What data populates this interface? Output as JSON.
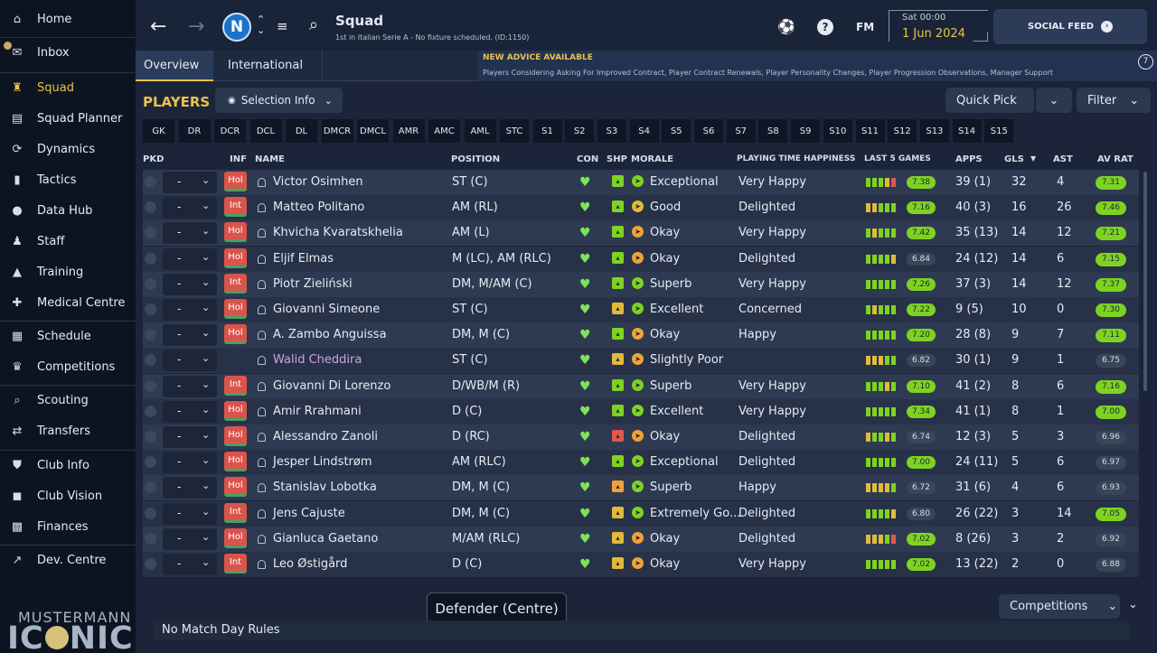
{
  "sidebar": {
    "items": [
      {
        "label": "Home",
        "icon": "home-icon",
        "glyph": "⌂",
        "sep": false,
        "active": false,
        "dot": false
      },
      {
        "label": "Inbox",
        "icon": "inbox-icon",
        "glyph": "✉",
        "sep": true,
        "active": false,
        "dot": true
      },
      {
        "label": "Squad",
        "icon": "squad-icon",
        "glyph": "♜",
        "sep": true,
        "active": true,
        "dot": false
      },
      {
        "label": "Squad Planner",
        "icon": "squad-planner-icon",
        "glyph": "▤",
        "sep": false,
        "active": false,
        "dot": false
      },
      {
        "label": "Dynamics",
        "icon": "dynamics-icon",
        "glyph": "⟳",
        "sep": false,
        "active": false,
        "dot": false
      },
      {
        "label": "Tactics",
        "icon": "tactics-icon",
        "glyph": "▮",
        "sep": false,
        "active": false,
        "dot": false
      },
      {
        "label": "Data Hub",
        "icon": "data-hub-icon",
        "glyph": "●",
        "sep": false,
        "active": false,
        "dot": false
      },
      {
        "label": "Staff",
        "icon": "staff-icon",
        "glyph": "♟",
        "sep": false,
        "active": false,
        "dot": false
      },
      {
        "label": "Training",
        "icon": "training-icon",
        "glyph": "▲",
        "sep": false,
        "active": false,
        "dot": false
      },
      {
        "label": "Medical Centre",
        "icon": "medical-centre-icon",
        "glyph": "✚",
        "sep": false,
        "active": false,
        "dot": false
      },
      {
        "label": "Schedule",
        "icon": "schedule-icon",
        "glyph": "▦",
        "sep": true,
        "active": false,
        "dot": false
      },
      {
        "label": "Competitions",
        "icon": "competitions-icon",
        "glyph": "♛",
        "sep": false,
        "active": false,
        "dot": false
      },
      {
        "label": "Scouting",
        "icon": "scouting-icon",
        "glyph": "⌕",
        "sep": true,
        "active": false,
        "dot": false
      },
      {
        "label": "Transfers",
        "icon": "transfers-icon",
        "glyph": "⇄",
        "sep": false,
        "active": false,
        "dot": false
      },
      {
        "label": "Club Info",
        "icon": "club-info-icon",
        "glyph": "⛊",
        "sep": true,
        "active": false,
        "dot": false
      },
      {
        "label": "Club Vision",
        "icon": "club-vision-icon",
        "glyph": "◼",
        "sep": false,
        "active": false,
        "dot": false
      },
      {
        "label": "Finances",
        "icon": "finances-icon",
        "glyph": "▩",
        "sep": false,
        "active": false,
        "dot": false
      },
      {
        "label": "Dev. Centre",
        "icon": "dev-centre-icon",
        "glyph": "↗",
        "sep": true,
        "active": false,
        "dot": false
      }
    ]
  },
  "brand": {
    "line1": "MUSTERMANN",
    "line2a": "IC",
    "line2b": "NIC"
  },
  "topbar": {
    "title": "Squad",
    "subtitle": "1st in Italian Serie A - No fixture scheduled. (ID:1150)",
    "club_badge": "N",
    "date_day": "Sat 00:00",
    "date_full": "1 Jun 2024",
    "social_label": "SOCIAL FEED",
    "fm_label": "FM"
  },
  "subtabs": [
    {
      "label": "Overview ⌄"
    },
    {
      "label": "International ⌄"
    }
  ],
  "advice": {
    "title": "NEW ADVICE AVAILABLE",
    "text": "Players Considering Asking For Improved Contract, Player Contract Renewals, Player Personality Changes, Player Progression Observations, Manager Support",
    "count": "7"
  },
  "players_title": "PLAYERS",
  "selection_info": "Selection Info",
  "quick_pick": "Quick Pick",
  "filter": "Filter",
  "positions": [
    "GK",
    "DR",
    "DCR",
    "DCL",
    "DL",
    "DMCR",
    "DMCL",
    "AMR",
    "AMC",
    "AML",
    "STC",
    "S1",
    "S2",
    "S3",
    "S4",
    "S5",
    "S6",
    "S7",
    "S8",
    "S9",
    "S10",
    "S11",
    "S12",
    "S13",
    "S14",
    "S15"
  ],
  "columns": {
    "pkd": "PKD",
    "inf": "INF",
    "name": "NAME",
    "position": "POSITION",
    "con": "CON",
    "shp": "SHP",
    "morale": "MORALE",
    "pt": "PLAYING TIME HAPPINESS",
    "last5": "LAST 5 GAMES",
    "apps": "APPS",
    "gls": "GLS",
    "ast": "AST",
    "avrat": "AV RAT"
  },
  "players": [
    {
      "pkd": "-",
      "inf": "Hol",
      "name": "Victor Osimhen",
      "pos": "ST (C)",
      "shp": "g",
      "morale": "Exceptional",
      "mc": "g",
      "happy": "Very Happy",
      "form": [
        "g",
        "g",
        "g",
        "y",
        "r"
      ],
      "fr": "7.38",
      "frc": "g",
      "apps": "39 (1)",
      "gls": "32",
      "ast": "4",
      "av": "7.31",
      "avc": "g"
    },
    {
      "pkd": "-",
      "inf": "Int",
      "name": "Matteo Politano",
      "pos": "AM (RL)",
      "shp": "g",
      "morale": "Good",
      "mc": "y",
      "happy": "Delighted",
      "form": [
        "y",
        "y",
        "g",
        "g",
        "g"
      ],
      "fr": "7.16",
      "frc": "g",
      "apps": "40 (3)",
      "gls": "16",
      "ast": "26",
      "av": "7.46",
      "avc": "g"
    },
    {
      "pkd": "-",
      "inf": "Hol",
      "name": "Khvicha Kvaratskhelia",
      "pos": "AM (L)",
      "shp": "g",
      "morale": "Okay",
      "mc": "o",
      "happy": "Very Happy",
      "form": [
        "g",
        "y",
        "g",
        "g",
        "g"
      ],
      "fr": "7.42",
      "frc": "g",
      "apps": "35 (13)",
      "gls": "14",
      "ast": "12",
      "av": "7.21",
      "avc": "g"
    },
    {
      "pkd": "-",
      "inf": "Hol",
      "name": "Eljif Elmas",
      "pos": "M (LC), AM (RLC)",
      "shp": "g",
      "morale": "Okay",
      "mc": "o",
      "happy": "Delighted",
      "form": [
        "g",
        "g",
        "g",
        "g",
        "y"
      ],
      "fr": "6.84",
      "frc": "gy",
      "apps": "24 (12)",
      "gls": "14",
      "ast": "6",
      "av": "7.15",
      "avc": "g"
    },
    {
      "pkd": "-",
      "inf": "Int",
      "name": "Piotr Zieliński",
      "pos": "DM, M/AM (C)",
      "shp": "g",
      "morale": "Superb",
      "mc": "g",
      "happy": "Very Happy",
      "form": [
        "g",
        "g",
        "g",
        "g",
        "g"
      ],
      "fr": "7.26",
      "frc": "g",
      "apps": "37 (3)",
      "gls": "14",
      "ast": "12",
      "av": "7.37",
      "avc": "g"
    },
    {
      "pkd": "-",
      "inf": "Hol",
      "name": "Giovanni Simeone",
      "pos": "ST (C)",
      "shp": "y",
      "morale": "Excellent",
      "mc": "g",
      "happy": "Concerned",
      "form": [
        "g",
        "y",
        "g",
        "g",
        "g"
      ],
      "fr": "7.22",
      "frc": "g",
      "apps": "9 (5)",
      "gls": "10",
      "ast": "0",
      "av": "7.30",
      "avc": "g"
    },
    {
      "pkd": "-",
      "inf": "Hol",
      "name": "A. Zambo Anguissa",
      "pos": "DM, M (C)",
      "shp": "g",
      "morale": "Okay",
      "mc": "o",
      "happy": "Happy",
      "form": [
        "g",
        "g",
        "g",
        "g",
        "g"
      ],
      "fr": "7.20",
      "frc": "g",
      "apps": "28 (8)",
      "gls": "9",
      "ast": "7",
      "av": "7.11",
      "avc": "g"
    },
    {
      "pkd": "-",
      "inf": "",
      "name": "Walid Cheddira",
      "pos": "ST (C)",
      "shp": "y",
      "morale": "Slightly Poor",
      "mc": "o",
      "happy": "",
      "form": [
        "y",
        "y",
        "y",
        "g",
        "g"
      ],
      "fr": "6.82",
      "frc": "gy",
      "apps": "30 (1)",
      "gls": "9",
      "ast": "1",
      "av": "6.75",
      "avc": "gy"
    },
    {
      "pkd": "-",
      "inf": "Int",
      "name": "Giovanni Di Lorenzo",
      "pos": "D/WB/M (R)",
      "shp": "g",
      "morale": "Superb",
      "mc": "g",
      "happy": "Very Happy",
      "form": [
        "g",
        "g",
        "g",
        "y",
        "g"
      ],
      "fr": "7.10",
      "frc": "g",
      "apps": "41 (2)",
      "gls": "8",
      "ast": "6",
      "av": "7.16",
      "avc": "g"
    },
    {
      "pkd": "-",
      "inf": "Hol",
      "name": "Amir Rrahmani",
      "pos": "D (C)",
      "shp": "g",
      "morale": "Excellent",
      "mc": "g",
      "happy": "Very Happy",
      "form": [
        "g",
        "g",
        "g",
        "g",
        "g"
      ],
      "fr": "7.34",
      "frc": "g",
      "apps": "41 (1)",
      "gls": "8",
      "ast": "1",
      "av": "7.00",
      "avc": "g"
    },
    {
      "pkd": "-",
      "inf": "Hol",
      "name": "Alessandro Zanoli",
      "pos": "D (RC)",
      "shp": "r",
      "morale": "Okay",
      "mc": "o",
      "happy": "Delighted",
      "form": [
        "y",
        "g",
        "g",
        "y",
        "g"
      ],
      "fr": "6.74",
      "frc": "gy",
      "apps": "12 (3)",
      "gls": "5",
      "ast": "3",
      "av": "6.96",
      "avc": "gy"
    },
    {
      "pkd": "-",
      "inf": "Hol",
      "name": "Jesper Lindstrøm",
      "pos": "AM (RLC)",
      "shp": "g",
      "morale": "Exceptional",
      "mc": "g",
      "happy": "Delighted",
      "form": [
        "g",
        "g",
        "g",
        "g",
        "g"
      ],
      "fr": "7.00",
      "frc": "g",
      "apps": "24 (11)",
      "gls": "5",
      "ast": "6",
      "av": "6.97",
      "avc": "gy"
    },
    {
      "pkd": "-",
      "inf": "Hol",
      "name": "Stanislav Lobotka",
      "pos": "DM, M (C)",
      "shp": "o",
      "morale": "Superb",
      "mc": "g",
      "happy": "Happy",
      "form": [
        "y",
        "y",
        "y",
        "y",
        "g"
      ],
      "fr": "6.72",
      "frc": "gy",
      "apps": "31 (6)",
      "gls": "4",
      "ast": "6",
      "av": "6.93",
      "avc": "gy"
    },
    {
      "pkd": "-",
      "inf": "Int",
      "name": "Jens Cajuste",
      "pos": "DM, M (C)",
      "shp": "y",
      "morale": "Extremely Go...",
      "mc": "g",
      "happy": "Delighted",
      "form": [
        "g",
        "g",
        "g",
        "g",
        "y"
      ],
      "fr": "6.80",
      "frc": "gy",
      "apps": "26 (22)",
      "gls": "3",
      "ast": "14",
      "av": "7.05",
      "avc": "g"
    },
    {
      "pkd": "-",
      "inf": "Hol",
      "name": "Gianluca Gaetano",
      "pos": "M/AM (RLC)",
      "shp": "y",
      "morale": "Okay",
      "mc": "o",
      "happy": "Delighted",
      "form": [
        "y",
        "y",
        "y",
        "g",
        "r"
      ],
      "fr": "7.02",
      "frc": "g",
      "apps": "8 (26)",
      "gls": "3",
      "ast": "2",
      "av": "6.92",
      "avc": "gy"
    },
    {
      "pkd": "-",
      "inf": "Int",
      "name": "Leo Østigård",
      "pos": "D (C)",
      "shp": "y",
      "morale": "Okay",
      "mc": "o",
      "happy": "Very Happy",
      "form": [
        "g",
        "g",
        "g",
        "g",
        "g"
      ],
      "fr": "7.02",
      "frc": "g",
      "apps": "13 (22)",
      "gls": "2",
      "ast": "0",
      "av": "6.88",
      "avc": "gy"
    }
  ],
  "tooltip": "Defender (Centre)",
  "competitions_label": "Competitions",
  "rules_text": "No Match Day Rules",
  "colors": {
    "accent": "#e8c34b",
    "good": "#7ed321",
    "bad": "#d9544b"
  }
}
